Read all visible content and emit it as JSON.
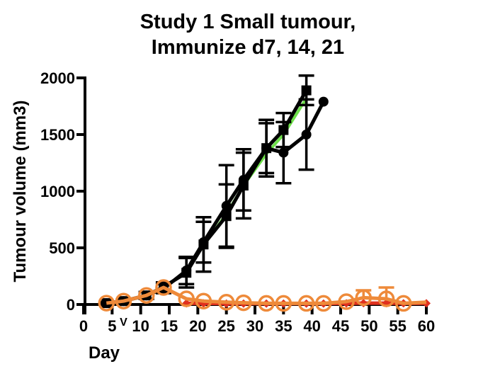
{
  "chart_data": {
    "type": "line",
    "title": [
      "Study 1 Small tumour,",
      "Immunize d7, 14, 21"
    ],
    "xlabel": "Day",
    "ylabel": "Tumour volume (mm3)",
    "xlim": [
      0,
      60
    ],
    "ylim": [
      0,
      2000
    ],
    "xticks": [
      0,
      5,
      10,
      15,
      20,
      25,
      30,
      35,
      40,
      45,
      50,
      55,
      60
    ],
    "yticks": [
      0,
      500,
      1000,
      1500,
      2000
    ],
    "annotations": [
      {
        "text": "V",
        "x": 7,
        "note": "immunization marker below x-axis"
      }
    ],
    "grid": false,
    "legend": "none",
    "series": [
      {
        "name": "green-control",
        "color": "#6ee04a",
        "marker": "none",
        "x": [
          14,
          18,
          21,
          25,
          28,
          32,
          35,
          39
        ],
        "y": [
          140,
          300,
          520,
          800,
          1050,
          1330,
          1500,
          1820
        ],
        "err": [
          0,
          0,
          0,
          0,
          0,
          0,
          0,
          0
        ]
      },
      {
        "name": "black-squares",
        "color": "#000000",
        "marker": "square",
        "x": [
          4,
          7,
          11,
          14,
          18,
          21,
          25,
          28,
          32,
          35,
          39
        ],
        "y": [
          12,
          30,
          80,
          155,
          280,
          530,
          780,
          1050,
          1380,
          1540,
          1890
        ],
        "err": [
          10,
          15,
          30,
          40,
          130,
          240,
          280,
          290,
          220,
          150,
          130
        ]
      },
      {
        "name": "black-circles",
        "color": "#000000",
        "marker": "circle",
        "x": [
          4,
          7,
          11,
          14,
          18,
          21,
          25,
          28,
          32,
          35,
          39,
          42
        ],
        "y": [
          12,
          30,
          80,
          140,
          300,
          550,
          870,
          1100,
          1380,
          1340,
          1500,
          1790
        ],
        "err": [
          10,
          15,
          30,
          40,
          120,
          180,
          360,
          270,
          250,
          270,
          310,
          0
        ]
      },
      {
        "name": "red-diamonds",
        "color": "#e0301e",
        "marker": "diamond",
        "x": [
          18,
          21,
          25,
          28,
          32,
          35,
          39,
          42,
          46,
          49,
          53,
          56,
          60
        ],
        "y": [
          10,
          10,
          8,
          8,
          8,
          8,
          8,
          8,
          10,
          12,
          12,
          10,
          10
        ],
        "err": [
          0,
          0,
          0,
          0,
          0,
          0,
          0,
          0,
          0,
          0,
          0,
          0,
          0
        ]
      },
      {
        "name": "orange-open-circles",
        "color": "#ee8a3a",
        "marker": "open-circle",
        "x": [
          4,
          7,
          11,
          14,
          18,
          21,
          25,
          28,
          32,
          35,
          39,
          42,
          46,
          49,
          53,
          56,
          60
        ],
        "y": [
          12,
          30,
          80,
          150,
          50,
          30,
          20,
          15,
          10,
          10,
          10,
          10,
          25,
          60,
          50,
          10,
          20
        ],
        "err": [
          0,
          0,
          0,
          0,
          0,
          0,
          0,
          0,
          0,
          0,
          0,
          0,
          0,
          65,
          100,
          0,
          0
        ]
      }
    ]
  }
}
